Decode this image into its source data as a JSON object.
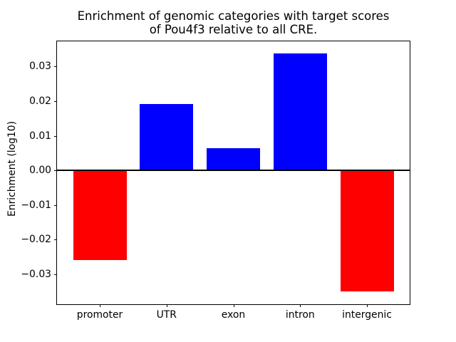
{
  "chart_data": {
    "type": "bar",
    "title": "Enrichment of genomic categories with target scores\nof Pou4f3 relative to all CRE.",
    "ylabel": "Enrichment (log10)",
    "xlabel": "",
    "categories": [
      "promoter",
      "UTR",
      "exon",
      "intron",
      "intergenic"
    ],
    "values": [
      -0.026,
      0.0192,
      0.0065,
      0.0338,
      -0.035
    ],
    "positive_color": "#0000ff",
    "negative_color": "#ff0000",
    "bar_width": 0.8,
    "xlim": [
      -0.64,
      4.64
    ],
    "ylim": [
      -0.0387,
      0.0373
    ],
    "yticks": [
      0.03,
      0.02,
      0.01,
      0.0,
      -0.01,
      -0.02,
      -0.03
    ],
    "ytick_labels": [
      "0.03",
      "0.02",
      "0.01",
      "0.00",
      "−0.01",
      "−0.02",
      "−0.03"
    ],
    "zero_line": true,
    "grid": false,
    "legend": null,
    "background": "#ffffff",
    "axes_color": "#000000"
  }
}
